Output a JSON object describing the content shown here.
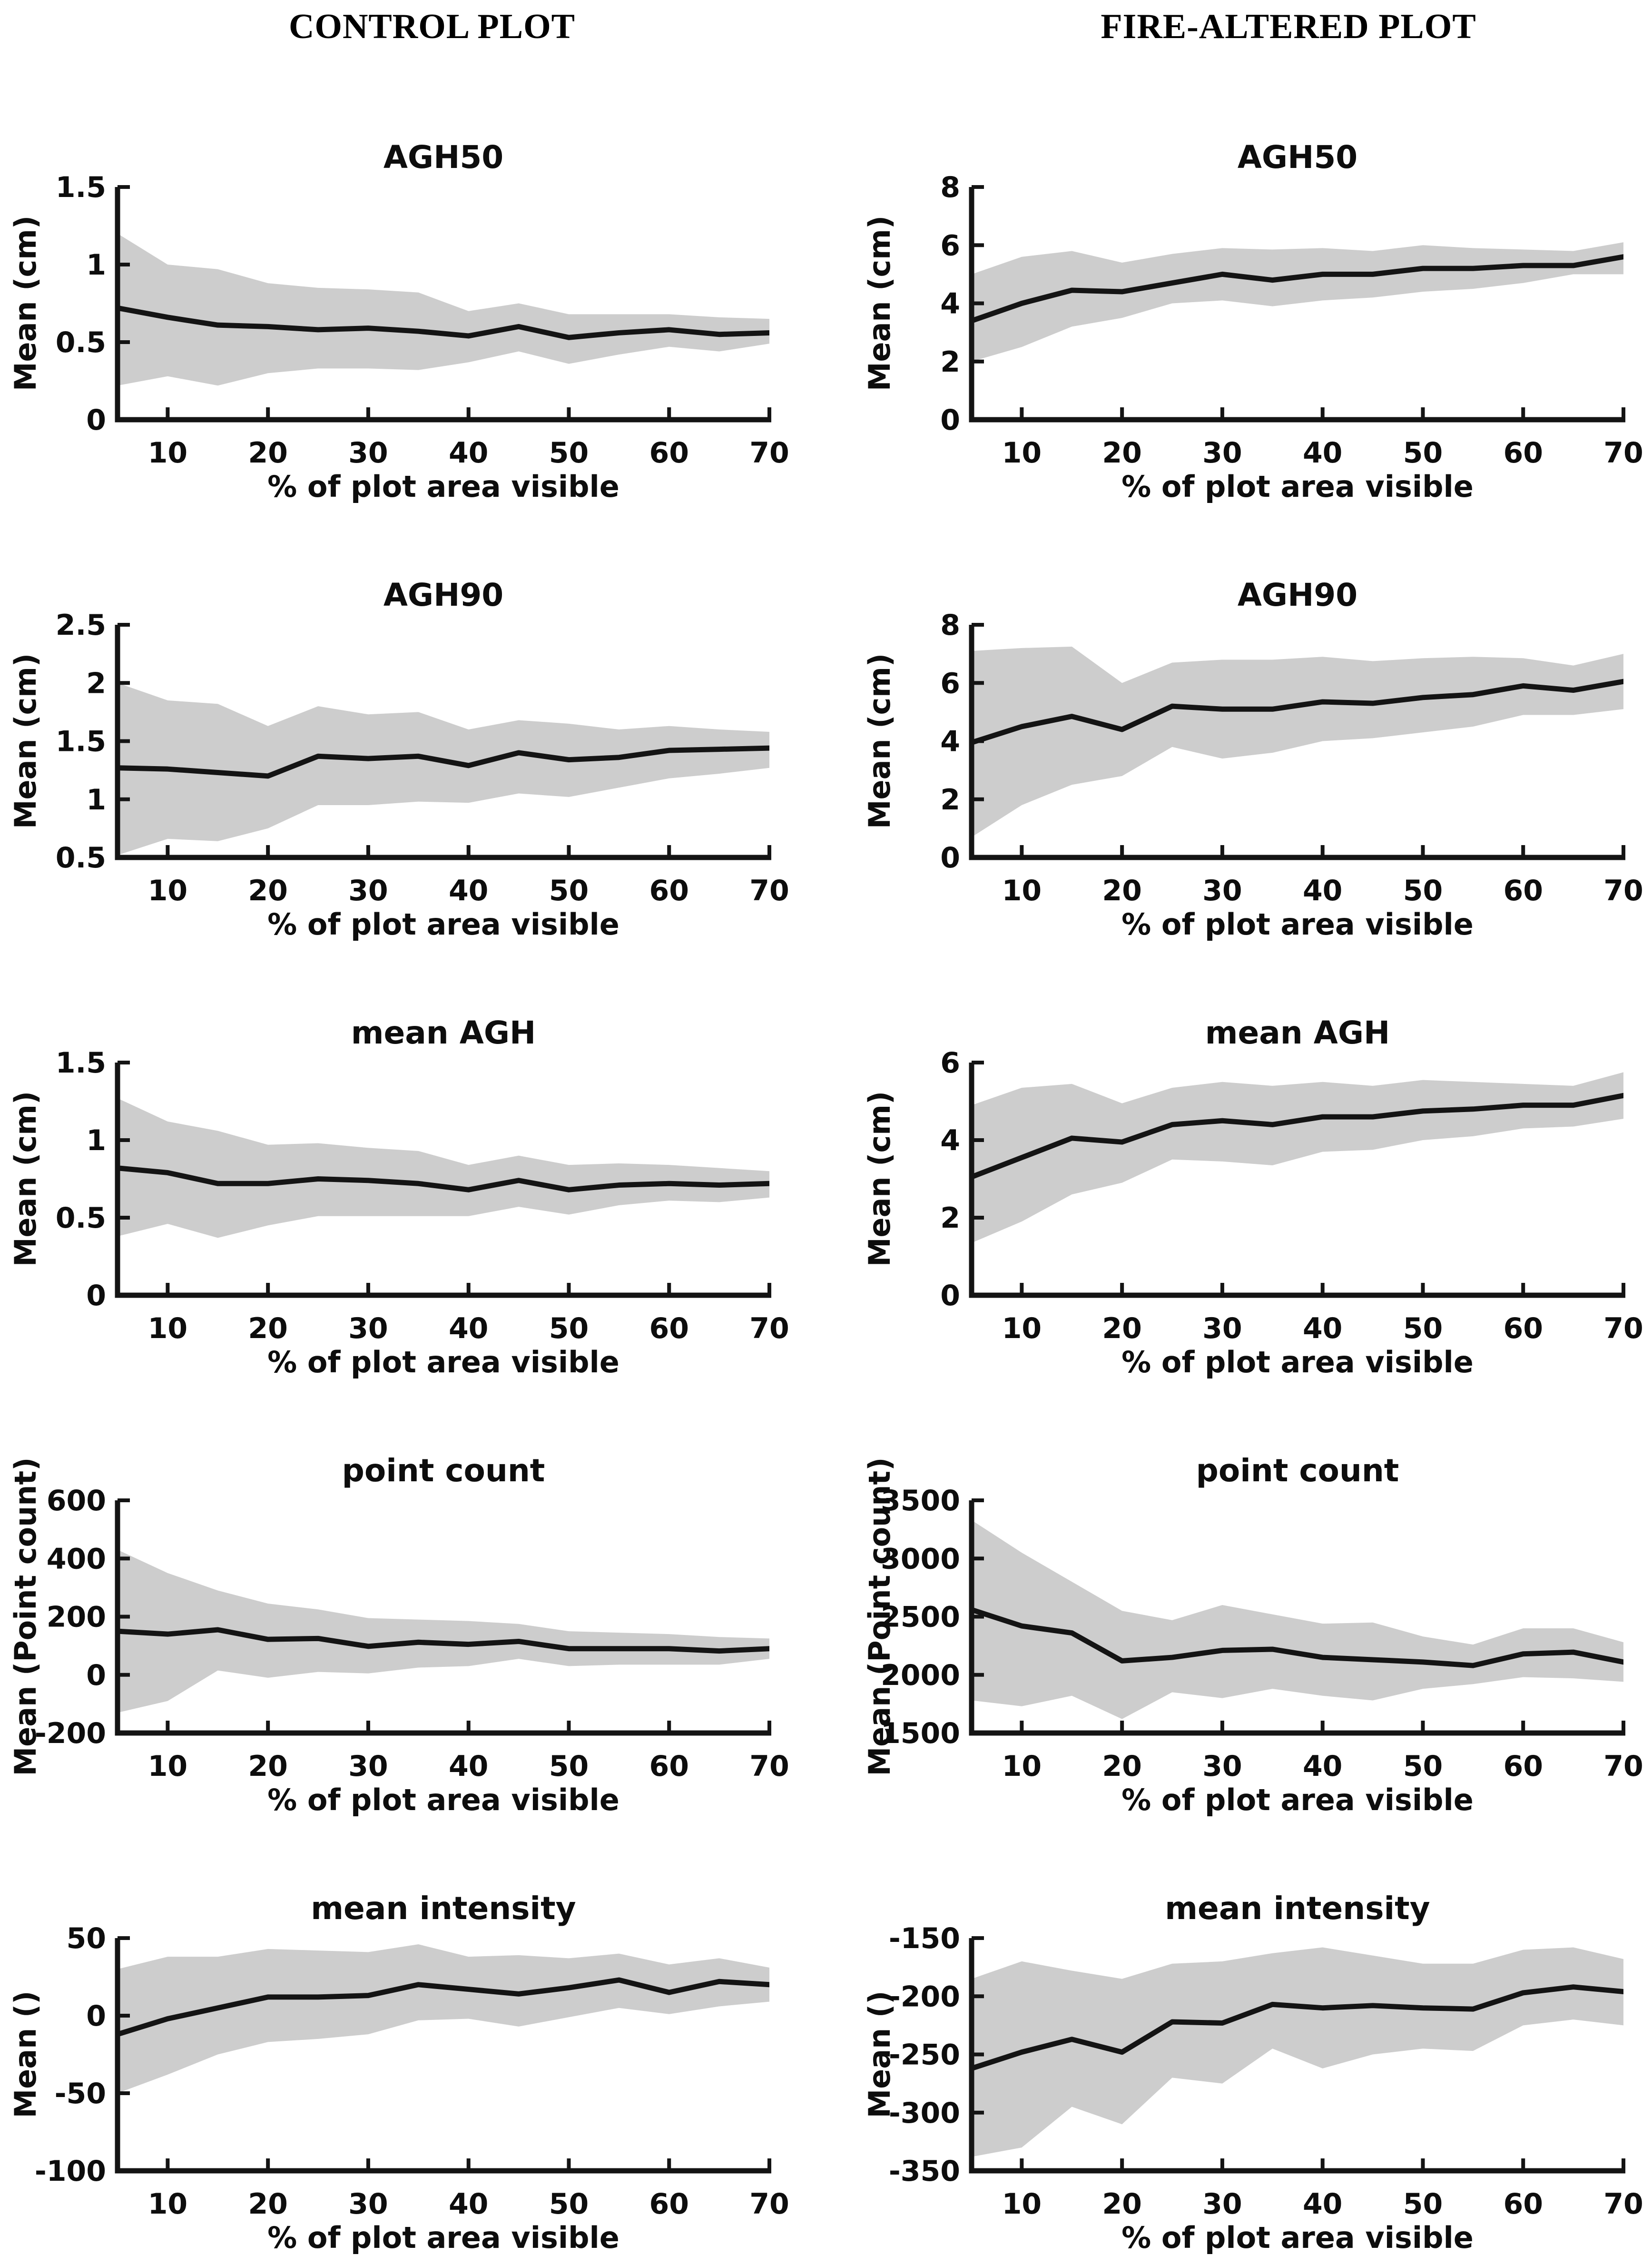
{
  "figure": {
    "background": "#ffffff",
    "headers": [
      {
        "id": "control",
        "label": "CONTROL PLOT"
      },
      {
        "id": "fire",
        "label": "FIRE-ALTERED PLOT"
      }
    ]
  },
  "colors": {
    "band": "#cdcdcd",
    "mean_line": "#141414",
    "axis": "#141414",
    "text": "#0d0d0d"
  },
  "axis_common": {
    "xlabel": "% of plot area visible",
    "x_range": [
      5,
      70
    ],
    "xticks": [
      10,
      20,
      30,
      40,
      50,
      60,
      70
    ]
  },
  "chart_data": [
    {
      "id": "control-agh50",
      "type": "line",
      "column": "control",
      "row": 0,
      "title": "AGH50",
      "ylabel": "Mean (cm)",
      "xlabel": "% of plot area visible",
      "ylim": [
        0,
        1.5
      ],
      "yticks": [
        0,
        0.5,
        1,
        1.5
      ],
      "ytick_labels": [
        "0",
        "0.5",
        "1",
        "1.5"
      ],
      "x": [
        5,
        10,
        15,
        20,
        25,
        30,
        35,
        40,
        45,
        50,
        55,
        60,
        65,
        70
      ],
      "series": [
        {
          "name": "mean",
          "values": [
            0.72,
            0.66,
            0.61,
            0.6,
            0.58,
            0.59,
            0.57,
            0.54,
            0.6,
            0.53,
            0.56,
            0.58,
            0.55,
            0.56
          ]
        },
        {
          "name": "upper_band",
          "values": [
            1.2,
            1.0,
            0.97,
            0.88,
            0.85,
            0.84,
            0.82,
            0.7,
            0.75,
            0.68,
            0.68,
            0.68,
            0.66,
            0.65
          ]
        },
        {
          "name": "lower_band",
          "values": [
            0.22,
            0.28,
            0.22,
            0.3,
            0.33,
            0.33,
            0.32,
            0.37,
            0.44,
            0.36,
            0.42,
            0.47,
            0.44,
            0.49
          ]
        }
      ]
    },
    {
      "id": "fire-agh50",
      "type": "line",
      "column": "fire",
      "row": 0,
      "title": "AGH50",
      "ylabel": "Mean (cm)",
      "xlabel": "% of plot area visible",
      "ylim": [
        0,
        8
      ],
      "yticks": [
        0,
        2,
        4,
        6,
        8
      ],
      "ytick_labels": [
        "0",
        "2",
        "4",
        "6",
        "8"
      ],
      "x": [
        5,
        10,
        15,
        20,
        25,
        30,
        35,
        40,
        45,
        50,
        55,
        60,
        65,
        70
      ],
      "series": [
        {
          "name": "mean",
          "values": [
            3.4,
            4.0,
            4.45,
            4.4,
            4.7,
            5.0,
            4.8,
            5.0,
            5.0,
            5.2,
            5.2,
            5.3,
            5.3,
            5.6
          ]
        },
        {
          "name": "upper_band",
          "values": [
            5.0,
            5.6,
            5.8,
            5.4,
            5.7,
            5.9,
            5.85,
            5.9,
            5.8,
            6.0,
            5.9,
            5.85,
            5.8,
            6.1
          ]
        },
        {
          "name": "lower_band",
          "values": [
            2.0,
            2.5,
            3.2,
            3.5,
            4.0,
            4.1,
            3.9,
            4.1,
            4.2,
            4.4,
            4.5,
            4.7,
            5.0,
            5.0
          ]
        }
      ]
    },
    {
      "id": "control-agh90",
      "type": "line",
      "column": "control",
      "row": 1,
      "title": "AGH90",
      "ylabel": "Mean (cm)",
      "xlabel": "% of plot area visible",
      "ylim": [
        0.5,
        2.5
      ],
      "yticks": [
        0.5,
        1,
        1.5,
        2,
        2.5
      ],
      "ytick_labels": [
        "0.5",
        "1",
        "1.5",
        "2",
        "2.5"
      ],
      "x": [
        5,
        10,
        15,
        20,
        25,
        30,
        35,
        40,
        45,
        50,
        55,
        60,
        65,
        70
      ],
      "series": [
        {
          "name": "mean",
          "values": [
            1.27,
            1.26,
            1.23,
            1.2,
            1.37,
            1.35,
            1.37,
            1.29,
            1.4,
            1.34,
            1.36,
            1.42,
            1.43,
            1.44
          ]
        },
        {
          "name": "upper_band",
          "values": [
            2.0,
            1.85,
            1.82,
            1.63,
            1.8,
            1.73,
            1.75,
            1.6,
            1.68,
            1.65,
            1.6,
            1.63,
            1.6,
            1.58
          ]
        },
        {
          "name": "lower_band",
          "values": [
            0.52,
            0.66,
            0.64,
            0.75,
            0.95,
            0.95,
            0.98,
            0.97,
            1.05,
            1.02,
            1.1,
            1.18,
            1.22,
            1.27
          ]
        }
      ]
    },
    {
      "id": "fire-agh90",
      "type": "line",
      "column": "fire",
      "row": 1,
      "title": "AGH90",
      "ylabel": "Mean (cm)",
      "xlabel": "% of plot area visible",
      "ylim": [
        0,
        8
      ],
      "yticks": [
        0,
        2,
        4,
        6,
        8
      ],
      "ytick_labels": [
        "0",
        "2",
        "4",
        "6",
        "8"
      ],
      "x": [
        5,
        10,
        15,
        20,
        25,
        30,
        35,
        40,
        45,
        50,
        55,
        60,
        65,
        70
      ],
      "series": [
        {
          "name": "mean",
          "values": [
            3.95,
            4.5,
            4.85,
            4.4,
            5.2,
            5.1,
            5.1,
            5.35,
            5.3,
            5.5,
            5.6,
            5.9,
            5.75,
            6.05
          ]
        },
        {
          "name": "upper_band",
          "values": [
            7.1,
            7.2,
            7.25,
            6.0,
            6.7,
            6.8,
            6.8,
            6.9,
            6.75,
            6.85,
            6.9,
            6.85,
            6.6,
            7.0
          ]
        },
        {
          "name": "lower_band",
          "values": [
            0.7,
            1.8,
            2.5,
            2.8,
            3.8,
            3.4,
            3.6,
            4.0,
            4.1,
            4.3,
            4.5,
            4.9,
            4.9,
            5.1
          ]
        }
      ]
    },
    {
      "id": "control-mean-agh",
      "type": "line",
      "column": "control",
      "row": 2,
      "title": "mean AGH",
      "ylabel": "Mean (cm)",
      "xlabel": "% of plot area visible",
      "ylim": [
        0,
        1.5
      ],
      "yticks": [
        0,
        0.5,
        1,
        1.5
      ],
      "ytick_labels": [
        "0",
        "0.5",
        "1",
        "1.5"
      ],
      "x": [
        5,
        10,
        15,
        20,
        25,
        30,
        35,
        40,
        45,
        50,
        55,
        60,
        65,
        70
      ],
      "series": [
        {
          "name": "mean",
          "values": [
            0.82,
            0.79,
            0.72,
            0.72,
            0.75,
            0.74,
            0.72,
            0.68,
            0.74,
            0.68,
            0.71,
            0.72,
            0.71,
            0.72
          ]
        },
        {
          "name": "upper_band",
          "values": [
            1.27,
            1.12,
            1.06,
            0.97,
            0.98,
            0.95,
            0.93,
            0.84,
            0.9,
            0.84,
            0.85,
            0.84,
            0.82,
            0.8
          ]
        },
        {
          "name": "lower_band",
          "values": [
            0.38,
            0.46,
            0.37,
            0.45,
            0.51,
            0.51,
            0.51,
            0.51,
            0.57,
            0.52,
            0.58,
            0.61,
            0.6,
            0.63
          ]
        }
      ]
    },
    {
      "id": "fire-mean-agh",
      "type": "line",
      "column": "fire",
      "row": 2,
      "title": "mean AGH",
      "ylabel": "Mean (cm)",
      "xlabel": "% of plot area visible",
      "ylim": [
        0,
        6
      ],
      "yticks": [
        0,
        2,
        4,
        6
      ],
      "ytick_labels": [
        "0",
        "2",
        "4",
        "6"
      ],
      "x": [
        5,
        10,
        15,
        20,
        25,
        30,
        35,
        40,
        45,
        50,
        55,
        60,
        65,
        70
      ],
      "series": [
        {
          "name": "mean",
          "values": [
            3.05,
            3.55,
            4.05,
            3.95,
            4.4,
            4.5,
            4.4,
            4.6,
            4.6,
            4.75,
            4.8,
            4.9,
            4.9,
            5.15
          ]
        },
        {
          "name": "upper_band",
          "values": [
            4.9,
            5.35,
            5.45,
            4.95,
            5.35,
            5.5,
            5.4,
            5.5,
            5.4,
            5.55,
            5.5,
            5.45,
            5.4,
            5.75
          ]
        },
        {
          "name": "lower_band",
          "values": [
            1.35,
            1.9,
            2.6,
            2.9,
            3.5,
            3.45,
            3.35,
            3.7,
            3.75,
            4.0,
            4.1,
            4.3,
            4.35,
            4.55
          ]
        }
      ]
    },
    {
      "id": "control-point-count",
      "type": "line",
      "column": "control",
      "row": 3,
      "title": "point count",
      "ylabel": "Mean (Point count)",
      "xlabel": "% of plot area visible",
      "ylim": [
        -200,
        600
      ],
      "yticks": [
        -200,
        0,
        200,
        400,
        600
      ],
      "ytick_labels": [
        "-200",
        "0",
        "200",
        "400",
        "600"
      ],
      "x": [
        5,
        10,
        15,
        20,
        25,
        30,
        35,
        40,
        45,
        50,
        55,
        60,
        65,
        70
      ],
      "series": [
        {
          "name": "mean",
          "values": [
            150,
            140,
            155,
            122,
            125,
            98,
            112,
            105,
            115,
            90,
            90,
            90,
            82,
            90
          ]
        },
        {
          "name": "upper_band",
          "values": [
            430,
            350,
            290,
            245,
            225,
            195,
            190,
            185,
            175,
            150,
            145,
            140,
            130,
            125
          ]
        },
        {
          "name": "lower_band",
          "values": [
            -130,
            -90,
            15,
            -10,
            10,
            5,
            25,
            30,
            55,
            30,
            35,
            35,
            35,
            55
          ]
        }
      ]
    },
    {
      "id": "fire-point-count",
      "type": "line",
      "column": "fire",
      "row": 3,
      "title": "point count",
      "ylabel": "Mean (Point count)",
      "xlabel": "% of plot area visible",
      "ylim": [
        1500,
        3500
      ],
      "yticks": [
        1500,
        2000,
        2500,
        3000,
        3500
      ],
      "ytick_labels": [
        "1500",
        "2000",
        "2500",
        "3000",
        "3500"
      ],
      "x": [
        5,
        10,
        15,
        20,
        25,
        30,
        35,
        40,
        45,
        50,
        55,
        60,
        65,
        70
      ],
      "series": [
        {
          "name": "mean",
          "values": [
            2560,
            2420,
            2360,
            2120,
            2150,
            2210,
            2220,
            2150,
            2130,
            2110,
            2080,
            2180,
            2195,
            2110
          ]
        },
        {
          "name": "upper_band",
          "values": [
            3330,
            3050,
            2800,
            2550,
            2470,
            2600,
            2520,
            2440,
            2450,
            2330,
            2260,
            2400,
            2400,
            2280
          ]
        },
        {
          "name": "lower_band",
          "values": [
            1780,
            1730,
            1820,
            1620,
            1850,
            1800,
            1880,
            1820,
            1780,
            1880,
            1920,
            1980,
            1970,
            1940
          ]
        }
      ]
    },
    {
      "id": "control-mean-intensity",
      "type": "line",
      "column": "control",
      "row": 4,
      "title": "mean intensity",
      "ylabel": "Mean ()",
      "xlabel": "% of plot area visible",
      "ylim": [
        -100,
        50
      ],
      "yticks": [
        -100,
        -50,
        0,
        50
      ],
      "ytick_labels": [
        "-100",
        "-50",
        "0",
        "50"
      ],
      "x": [
        5,
        10,
        15,
        20,
        25,
        30,
        35,
        40,
        45,
        50,
        55,
        60,
        65,
        70
      ],
      "series": [
        {
          "name": "mean",
          "values": [
            -12,
            -2,
            5,
            12,
            12,
            13,
            20,
            17,
            14,
            18,
            23,
            15,
            22,
            20
          ]
        },
        {
          "name": "upper_band",
          "values": [
            30,
            38,
            38,
            43,
            42,
            41,
            46,
            38,
            39,
            37,
            40,
            33,
            37,
            31
          ]
        },
        {
          "name": "lower_band",
          "values": [
            -50,
            -38,
            -25,
            -17,
            -15,
            -12,
            -3,
            -2,
            -7,
            -1,
            5,
            1,
            6,
            9
          ]
        }
      ]
    },
    {
      "id": "fire-mean-intensity",
      "type": "line",
      "column": "fire",
      "row": 4,
      "title": "mean intensity",
      "ylabel": "Mean ()",
      "xlabel": "% of plot area visible",
      "ylim": [
        -350,
        -150
      ],
      "yticks": [
        -350,
        -300,
        -250,
        -200,
        -150
      ],
      "ytick_labels": [
        "-350",
        "-300",
        "-250",
        "-200",
        "-150"
      ],
      "x": [
        5,
        10,
        15,
        20,
        25,
        30,
        35,
        40,
        45,
        50,
        55,
        60,
        65,
        70
      ],
      "series": [
        {
          "name": "mean",
          "values": [
            -262,
            -248,
            -237,
            -248,
            -222,
            -223,
            -207,
            -210,
            -208,
            -210,
            -211,
            -197,
            -192,
            -196
          ]
        },
        {
          "name": "upper_band",
          "values": [
            -185,
            -170,
            -178,
            -185,
            -172,
            -170,
            -163,
            -158,
            -165,
            -172,
            -172,
            -160,
            -158,
            -168
          ]
        },
        {
          "name": "lower_band",
          "values": [
            -338,
            -330,
            -295,
            -310,
            -270,
            -275,
            -245,
            -262,
            -250,
            -245,
            -247,
            -225,
            -220,
            -225
          ]
        }
      ]
    }
  ]
}
